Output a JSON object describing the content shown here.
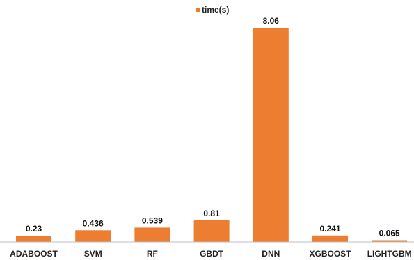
{
  "chart_data": {
    "type": "bar",
    "categories": [
      "ADABOOST",
      "SVM",
      "RF",
      "GBDT",
      "DNN",
      "XGBOOST",
      "LIGHTGBM"
    ],
    "series": [
      {
        "name": "time(s)",
        "values": [
          0.23,
          0.436,
          0.539,
          0.81,
          8.06,
          0.241,
          0.065
        ],
        "labels": [
          "0.23",
          "0.436",
          "0.539",
          "0.81",
          "8.06",
          "0.241",
          "0.065"
        ],
        "color": "#ED7D31"
      }
    ],
    "title": "",
    "xlabel": "",
    "ylabel": "",
    "ylim": [
      0,
      8.06
    ],
    "grid": false,
    "legend_position": "top-center",
    "baseline_color": "#BFBFBF"
  }
}
